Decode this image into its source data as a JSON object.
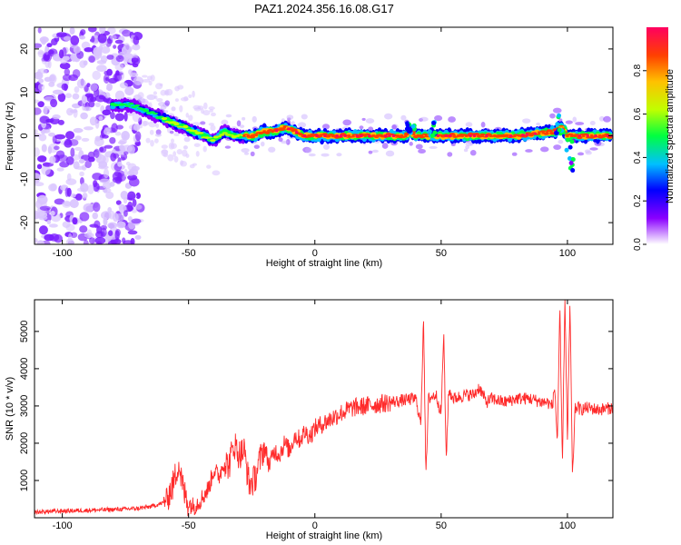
{
  "figure": {
    "title": "PAZ1.2024.356.16.08.G17"
  },
  "chart_data": [
    {
      "type": "heatmap",
      "title": "PAZ1.2024.356.16.08.G17",
      "xlabel": "Height of straight line (km)",
      "ylabel": "Frequency (Hz)",
      "xlim": [
        -111,
        118
      ],
      "ylim": [
        -25,
        25
      ],
      "xticks": [
        -100,
        -50,
        0,
        50,
        100
      ],
      "yticks": [
        -20,
        -10,
        0,
        10,
        20
      ],
      "colorbar": {
        "label": "Normalized spectral amplitude",
        "range": [
          0,
          1
        ],
        "ticks": [
          "0.0",
          "0.2",
          "0.4",
          "0.6",
          "0.8"
        ],
        "tick_values": [
          0.0,
          0.2,
          0.4,
          0.6,
          0.8
        ],
        "colors": [
          "#ffffff",
          "#8a00ff",
          "#0000ff",
          "#00c0ff",
          "#00ff40",
          "#c0ff00",
          "#ffc000",
          "#ff4000",
          "#ff0060"
        ]
      },
      "ridge": {
        "x": [
          -78,
          -72,
          -68,
          -64,
          -60,
          -56,
          -52,
          -48,
          -44,
          -40,
          -36,
          -32,
          -28,
          -24,
          -20,
          -16,
          -12,
          -8,
          -4,
          0,
          10,
          20,
          30,
          36,
          38,
          40,
          44,
          48,
          60,
          80,
          95,
          98,
          100,
          104,
          118
        ],
        "y": [
          7,
          7,
          6,
          5,
          4,
          3,
          2,
          1,
          0,
          -1,
          1,
          0,
          0,
          0,
          1,
          1,
          2,
          1,
          0,
          0,
          0,
          0,
          0,
          0,
          1,
          0,
          0,
          0,
          0,
          0,
          1,
          2,
          0,
          0,
          0
        ]
      }
    },
    {
      "type": "line",
      "xlabel": "Height of straight line (km)",
      "ylabel": "SNR (10 * v/v)",
      "xlim": [
        -111,
        118
      ],
      "ylim": [
        0,
        5850
      ],
      "xticks": [
        -100,
        -50,
        0,
        50,
        100
      ],
      "yticks": [
        1000,
        2000,
        3000,
        4000,
        5000
      ],
      "series": [
        {
          "color": "#ff2a2a",
          "x": [
            -111,
            -100,
            -90,
            -80,
            -70,
            -65,
            -60,
            -58,
            -56,
            -54,
            -52,
            -50,
            -48,
            -45,
            -42,
            -40,
            -38,
            -36,
            -34,
            -32,
            -30,
            -28,
            -26,
            -24,
            -22,
            -20,
            -18,
            -16,
            -14,
            -12,
            -10,
            -8,
            -6,
            -4,
            -2,
            0,
            5,
            10,
            15,
            20,
            25,
            30,
            35,
            40,
            42,
            43,
            44,
            45,
            48,
            50,
            51,
            52,
            53,
            55,
            60,
            63,
            65,
            68,
            70,
            75,
            80,
            85,
            90,
            92,
            94,
            95,
            96,
            97,
            98,
            99,
            100,
            101,
            102,
            103,
            104,
            105,
            108,
            112,
            118
          ],
          "values": [
            150,
            180,
            200,
            220,
            250,
            300,
            400,
            600,
            900,
            1500,
            700,
            400,
            300,
            500,
            800,
            1300,
            1100,
            1500,
            1400,
            2000,
            1700,
            1800,
            900,
            1000,
            1500,
            1900,
            1400,
            1800,
            1700,
            2000,
            1800,
            2200,
            2100,
            2300,
            2200,
            2400,
            2600,
            2800,
            2950,
            3000,
            3050,
            3100,
            3150,
            3200,
            2500,
            5500,
            1100,
            3200,
            3300,
            2800,
            5000,
            1600,
            3400,
            3200,
            3300,
            3300,
            3500,
            3100,
            3200,
            3100,
            3200,
            3200,
            3100,
            3100,
            3000,
            3500,
            2000,
            5600,
            1400,
            6000,
            2000,
            5800,
            1000,
            2900,
            3000,
            2900,
            2950,
            2900,
            2950
          ]
        }
      ]
    }
  ]
}
